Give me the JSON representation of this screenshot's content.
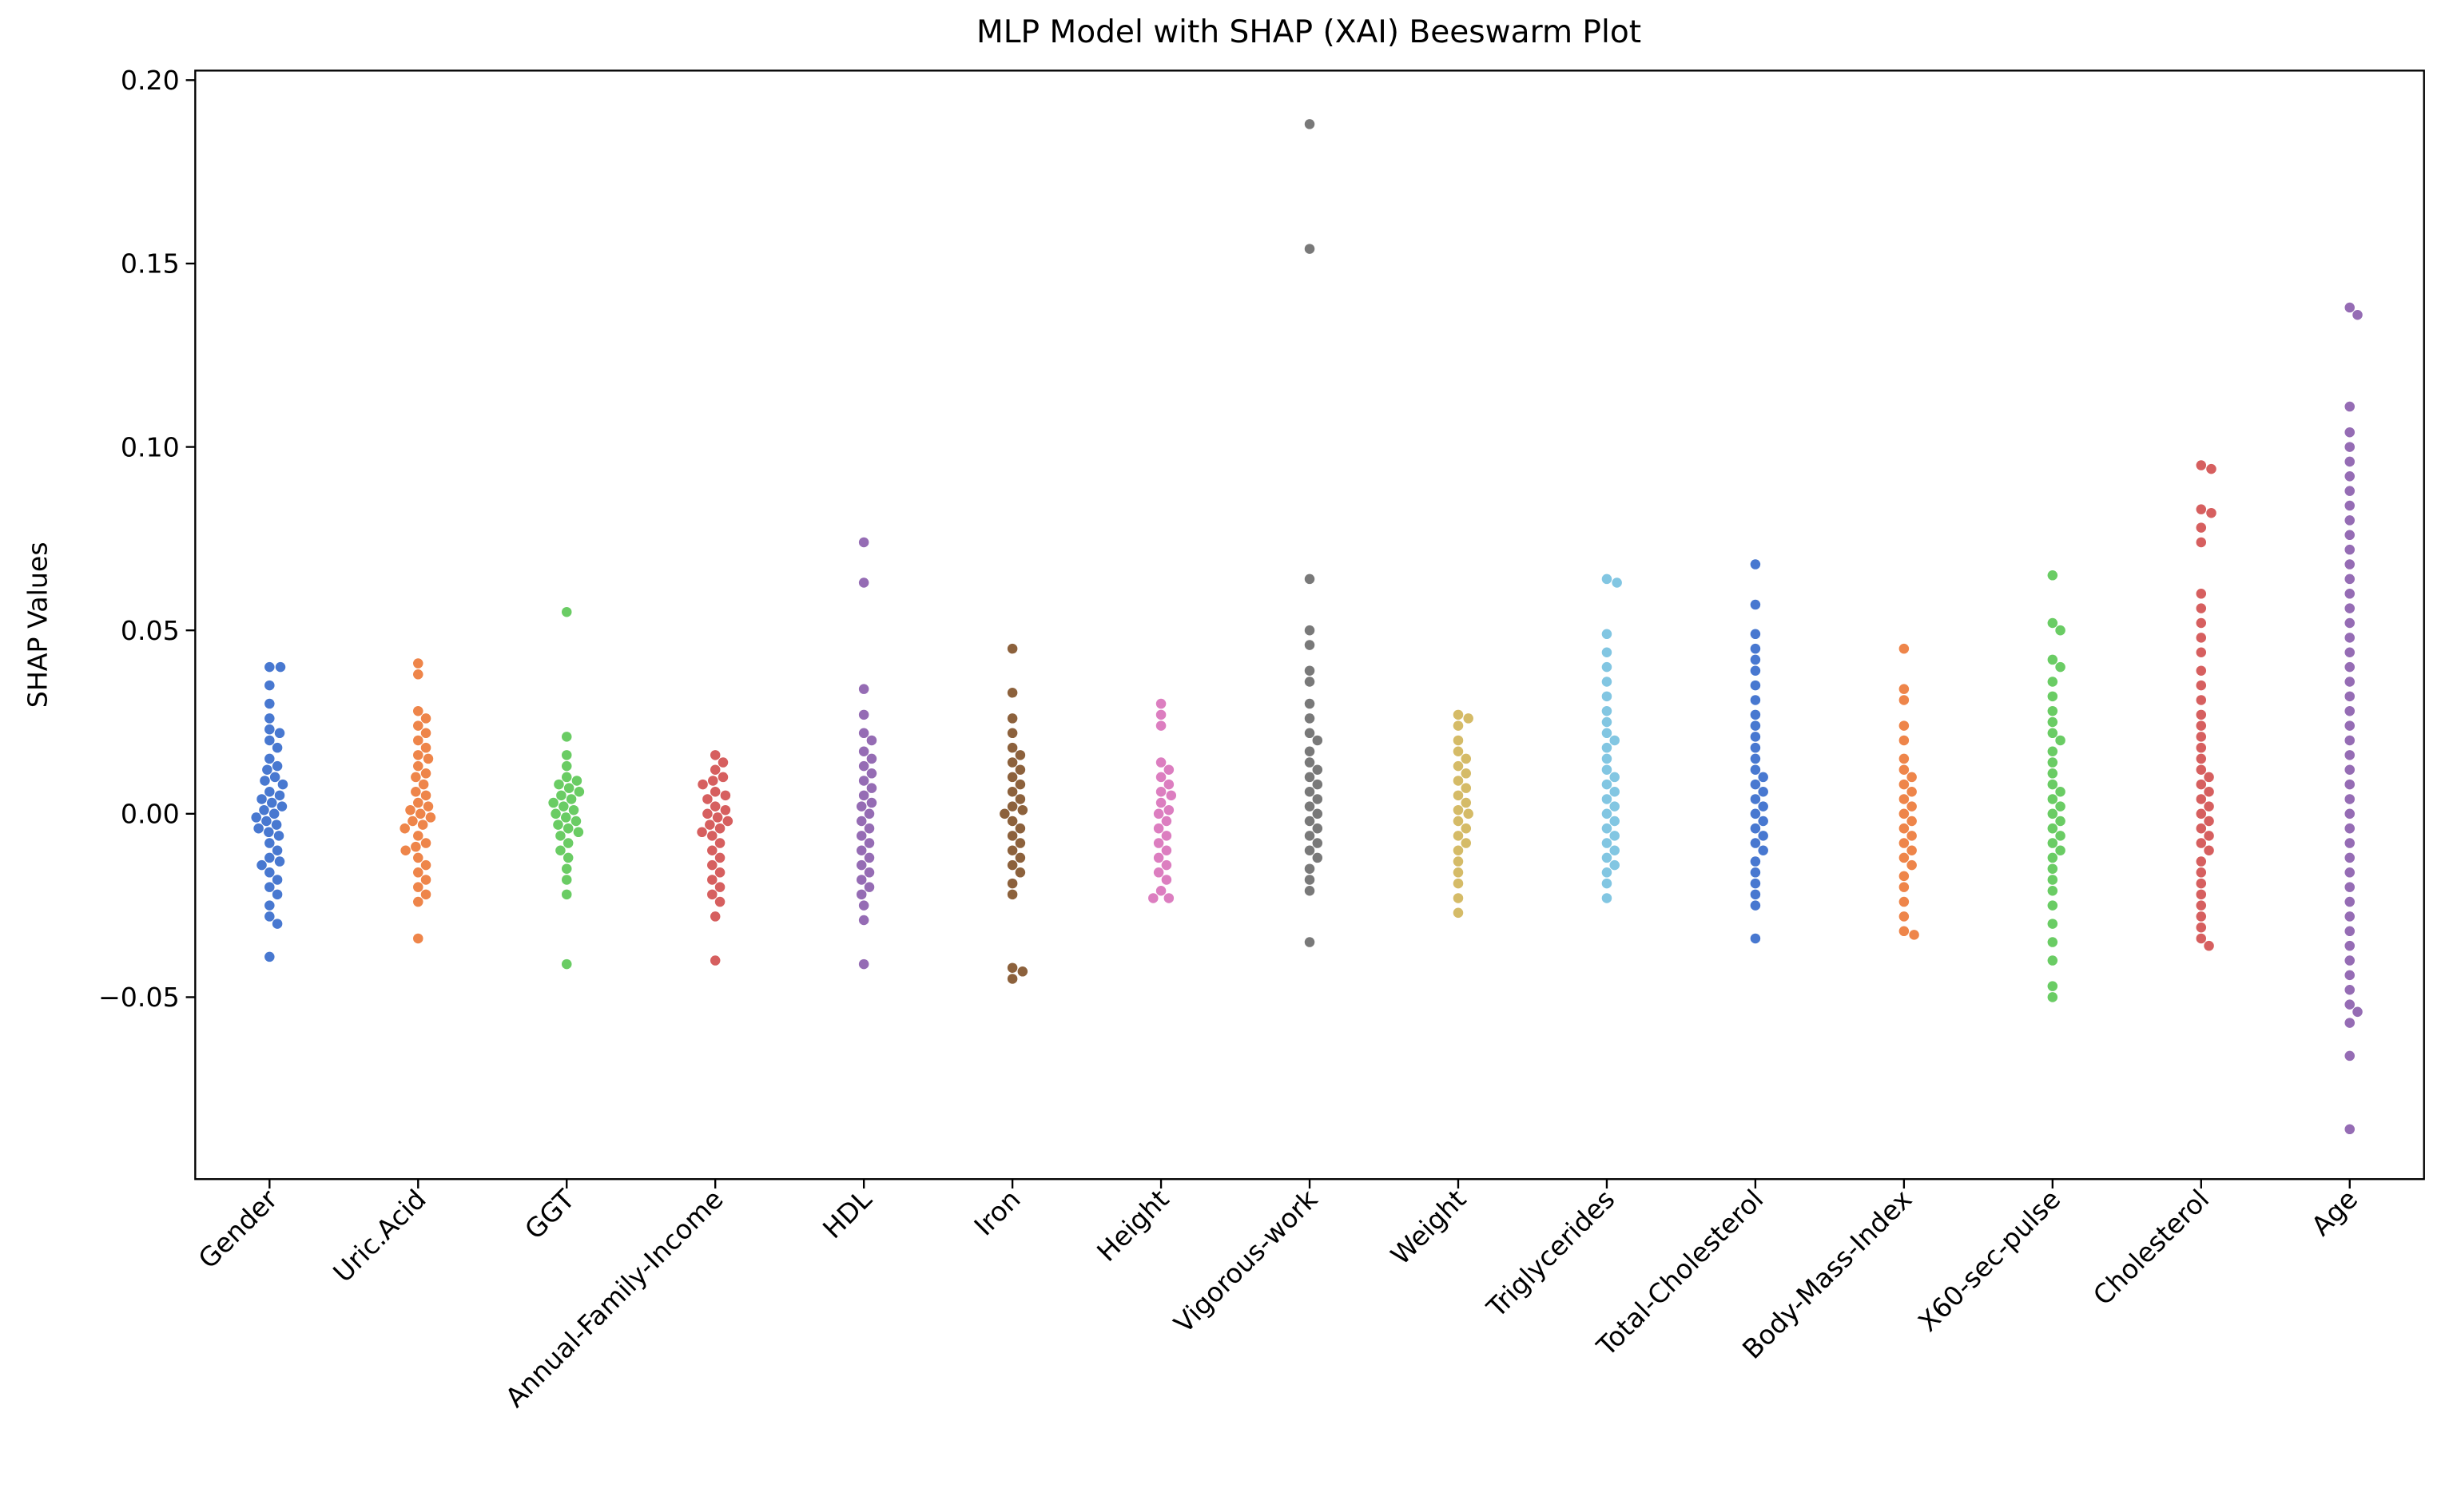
{
  "chart_data": {
    "type": "beeswarm",
    "title": "MLP Model with SHAP (XAI) Beeswarm Plot",
    "ylabel": "SHAP Values",
    "categories": [
      "Gender",
      "Uric.Acid",
      "GGT",
      "Annual-Family-Income",
      "HDL",
      "Iron",
      "Height",
      "Vigorous-work",
      "Weight",
      "Triglycerides",
      "Total-Cholesterol",
      "Body-Mass-Index",
      "X60-sec-pulse",
      "Cholesterol",
      "Age"
    ],
    "colors": [
      "#4878d0",
      "#ee854a",
      "#6acc64",
      "#d65f5f",
      "#956cb4",
      "#8c613c",
      "#dc7ec0",
      "#797979",
      "#d5bb67",
      "#82c6e2",
      "#4878d0",
      "#ee854a",
      "#6acc64",
      "#d65f5f",
      "#956cb4"
    ],
    "values": [
      [
        0.04,
        0.04,
        0.035,
        0.03,
        0.026,
        0.023,
        0.022,
        0.02,
        0.018,
        0.015,
        0.013,
        0.012,
        0.01,
        0.009,
        0.008,
        0.006,
        0.005,
        0.004,
        0.003,
        0.002,
        0.001,
        0.0,
        -0.001,
        -0.002,
        -0.003,
        -0.004,
        -0.005,
        -0.006,
        -0.008,
        -0.01,
        -0.012,
        -0.013,
        -0.014,
        -0.016,
        -0.018,
        -0.02,
        -0.022,
        -0.025,
        -0.028,
        -0.03,
        -0.039
      ],
      [
        0.041,
        0.038,
        0.028,
        0.026,
        0.024,
        0.022,
        0.02,
        0.018,
        0.016,
        0.015,
        0.013,
        0.011,
        0.01,
        0.008,
        0.006,
        0.005,
        0.003,
        0.002,
        0.001,
        0.0,
        -0.001,
        -0.002,
        -0.003,
        -0.004,
        -0.006,
        -0.008,
        -0.009,
        -0.01,
        -0.012,
        -0.014,
        -0.016,
        -0.018,
        -0.02,
        -0.022,
        -0.024,
        -0.034
      ],
      [
        0.055,
        0.021,
        0.016,
        0.013,
        0.01,
        0.009,
        0.008,
        0.007,
        0.006,
        0.005,
        0.004,
        0.003,
        0.002,
        0.001,
        0.0,
        -0.001,
        -0.002,
        -0.003,
        -0.004,
        -0.005,
        -0.006,
        -0.008,
        -0.01,
        -0.012,
        -0.015,
        -0.018,
        -0.022,
        -0.041
      ],
      [
        0.016,
        0.014,
        0.012,
        0.01,
        0.009,
        0.008,
        0.006,
        0.005,
        0.004,
        0.002,
        0.001,
        0.0,
        -0.001,
        -0.002,
        -0.003,
        -0.004,
        -0.005,
        -0.006,
        -0.008,
        -0.01,
        -0.012,
        -0.014,
        -0.016,
        -0.018,
        -0.02,
        -0.022,
        -0.024,
        -0.028,
        -0.04
      ],
      [
        0.074,
        0.063,
        0.034,
        0.027,
        0.022,
        0.02,
        0.017,
        0.015,
        0.013,
        0.011,
        0.009,
        0.007,
        0.005,
        0.003,
        0.002,
        0.0,
        -0.002,
        -0.004,
        -0.006,
        -0.008,
        -0.01,
        -0.012,
        -0.014,
        -0.016,
        -0.018,
        -0.02,
        -0.022,
        -0.025,
        -0.029,
        -0.041
      ],
      [
        0.045,
        0.033,
        0.026,
        0.022,
        0.018,
        0.016,
        0.014,
        0.012,
        0.01,
        0.008,
        0.006,
        0.004,
        0.002,
        0.001,
        0.0,
        -0.002,
        -0.004,
        -0.006,
        -0.008,
        -0.01,
        -0.012,
        -0.014,
        -0.016,
        -0.019,
        -0.022,
        -0.042,
        -0.043,
        -0.045
      ],
      [
        0.03,
        0.027,
        0.024,
        0.014,
        0.012,
        0.01,
        0.008,
        0.006,
        0.005,
        0.003,
        0.001,
        0.0,
        -0.002,
        -0.004,
        -0.006,
        -0.008,
        -0.01,
        -0.012,
        -0.014,
        -0.016,
        -0.018,
        -0.021,
        -0.023,
        -0.023
      ],
      [
        0.188,
        0.154,
        0.064,
        0.05,
        0.046,
        0.039,
        0.036,
        0.03,
        0.026,
        0.022,
        0.02,
        0.017,
        0.014,
        0.012,
        0.01,
        0.008,
        0.006,
        0.004,
        0.002,
        0.0,
        -0.002,
        -0.004,
        -0.006,
        -0.008,
        -0.01,
        -0.012,
        -0.015,
        -0.018,
        -0.021,
        -0.035
      ],
      [
        0.027,
        0.026,
        0.024,
        0.02,
        0.017,
        0.015,
        0.013,
        0.011,
        0.009,
        0.007,
        0.005,
        0.003,
        0.001,
        0.0,
        -0.002,
        -0.004,
        -0.006,
        -0.008,
        -0.01,
        -0.013,
        -0.016,
        -0.019,
        -0.023,
        -0.027
      ],
      [
        0.064,
        0.063,
        0.049,
        0.044,
        0.04,
        0.036,
        0.032,
        0.028,
        0.025,
        0.022,
        0.02,
        0.018,
        0.015,
        0.012,
        0.01,
        0.008,
        0.006,
        0.004,
        0.002,
        0.0,
        -0.002,
        -0.004,
        -0.006,
        -0.008,
        -0.01,
        -0.012,
        -0.014,
        -0.016,
        -0.019,
        -0.023
      ],
      [
        0.068,
        0.057,
        0.049,
        0.045,
        0.042,
        0.039,
        0.035,
        0.031,
        0.027,
        0.024,
        0.021,
        0.018,
        0.015,
        0.012,
        0.01,
        0.008,
        0.006,
        0.004,
        0.002,
        0.0,
        -0.002,
        -0.004,
        -0.006,
        -0.008,
        -0.01,
        -0.013,
        -0.016,
        -0.019,
        -0.022,
        -0.025,
        -0.034
      ],
      [
        0.045,
        0.034,
        0.031,
        0.024,
        0.02,
        0.015,
        0.012,
        0.01,
        0.008,
        0.006,
        0.004,
        0.002,
        0.0,
        -0.002,
        -0.004,
        -0.006,
        -0.008,
        -0.01,
        -0.012,
        -0.014,
        -0.017,
        -0.02,
        -0.024,
        -0.028,
        -0.032,
        -0.033
      ],
      [
        0.065,
        0.052,
        0.05,
        0.042,
        0.04,
        0.036,
        0.032,
        0.028,
        0.025,
        0.022,
        0.02,
        0.017,
        0.014,
        0.011,
        0.008,
        0.006,
        0.004,
        0.002,
        0.0,
        -0.002,
        -0.004,
        -0.006,
        -0.008,
        -0.01,
        -0.012,
        -0.015,
        -0.018,
        -0.021,
        -0.025,
        -0.03,
        -0.035,
        -0.04,
        -0.047,
        -0.05
      ],
      [
        0.095,
        0.094,
        0.083,
        0.082,
        0.078,
        0.074,
        0.06,
        0.056,
        0.052,
        0.048,
        0.044,
        0.039,
        0.035,
        0.031,
        0.027,
        0.024,
        0.021,
        0.018,
        0.015,
        0.012,
        0.01,
        0.008,
        0.006,
        0.004,
        0.002,
        0.0,
        -0.002,
        -0.004,
        -0.006,
        -0.008,
        -0.01,
        -0.013,
        -0.016,
        -0.019,
        -0.022,
        -0.025,
        -0.028,
        -0.031,
        -0.034,
        -0.036
      ],
      [
        0.138,
        0.136,
        0.111,
        0.104,
        0.1,
        0.096,
        0.092,
        0.088,
        0.084,
        0.08,
        0.076,
        0.072,
        0.068,
        0.064,
        0.06,
        0.056,
        0.052,
        0.048,
        0.044,
        0.04,
        0.036,
        0.032,
        0.028,
        0.024,
        0.02,
        0.016,
        0.012,
        0.008,
        0.004,
        0.0,
        -0.004,
        -0.008,
        -0.012,
        -0.016,
        -0.02,
        -0.024,
        -0.028,
        -0.032,
        -0.036,
        -0.04,
        -0.044,
        -0.048,
        -0.052,
        -0.054,
        -0.057,
        -0.066,
        -0.086
      ]
    ],
    "ylim": [
      -0.0996,
      0.2026
    ],
    "yticks": [
      {
        "value": -0.05,
        "label": "−0.05"
      },
      {
        "value": 0,
        "label": "0.00"
      },
      0.05,
      {
        "value": 0.1,
        "label": "0.10"
      },
      0.15,
      {
        "value": 0.2,
        "label": "0.20"
      }
    ]
  }
}
